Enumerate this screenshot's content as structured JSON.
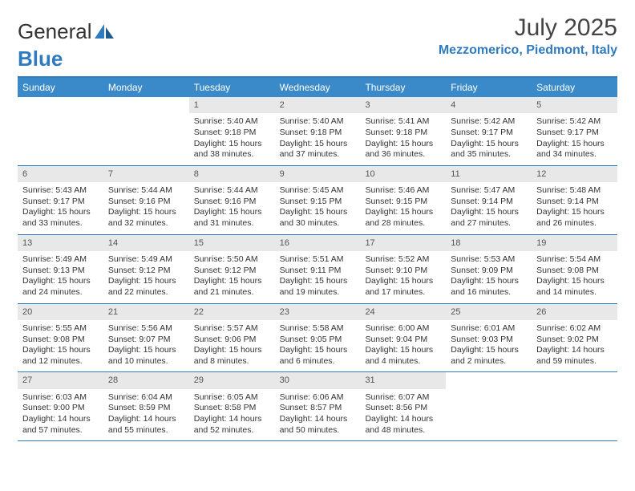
{
  "brand": {
    "part1": "General",
    "part2": "Blue"
  },
  "title": "July 2025",
  "location": "Mezzomerico, Piedmont, Italy",
  "colors": {
    "header_bg": "#3a8ac9",
    "accent": "#2f7bbf",
    "daynum_bg": "#e8e8e8",
    "text": "#333333"
  },
  "day_names": [
    "Sunday",
    "Monday",
    "Tuesday",
    "Wednesday",
    "Thursday",
    "Friday",
    "Saturday"
  ],
  "weeks": [
    [
      null,
      null,
      {
        "n": "1",
        "sr": "5:40 AM",
        "ss": "9:18 PM",
        "dl": "15 hours and 38 minutes."
      },
      {
        "n": "2",
        "sr": "5:40 AM",
        "ss": "9:18 PM",
        "dl": "15 hours and 37 minutes."
      },
      {
        "n": "3",
        "sr": "5:41 AM",
        "ss": "9:18 PM",
        "dl": "15 hours and 36 minutes."
      },
      {
        "n": "4",
        "sr": "5:42 AM",
        "ss": "9:17 PM",
        "dl": "15 hours and 35 minutes."
      },
      {
        "n": "5",
        "sr": "5:42 AM",
        "ss": "9:17 PM",
        "dl": "15 hours and 34 minutes."
      }
    ],
    [
      {
        "n": "6",
        "sr": "5:43 AM",
        "ss": "9:17 PM",
        "dl": "15 hours and 33 minutes."
      },
      {
        "n": "7",
        "sr": "5:44 AM",
        "ss": "9:16 PM",
        "dl": "15 hours and 32 minutes."
      },
      {
        "n": "8",
        "sr": "5:44 AM",
        "ss": "9:16 PM",
        "dl": "15 hours and 31 minutes."
      },
      {
        "n": "9",
        "sr": "5:45 AM",
        "ss": "9:15 PM",
        "dl": "15 hours and 30 minutes."
      },
      {
        "n": "10",
        "sr": "5:46 AM",
        "ss": "9:15 PM",
        "dl": "15 hours and 28 minutes."
      },
      {
        "n": "11",
        "sr": "5:47 AM",
        "ss": "9:14 PM",
        "dl": "15 hours and 27 minutes."
      },
      {
        "n": "12",
        "sr": "5:48 AM",
        "ss": "9:14 PM",
        "dl": "15 hours and 26 minutes."
      }
    ],
    [
      {
        "n": "13",
        "sr": "5:49 AM",
        "ss": "9:13 PM",
        "dl": "15 hours and 24 minutes."
      },
      {
        "n": "14",
        "sr": "5:49 AM",
        "ss": "9:12 PM",
        "dl": "15 hours and 22 minutes."
      },
      {
        "n": "15",
        "sr": "5:50 AM",
        "ss": "9:12 PM",
        "dl": "15 hours and 21 minutes."
      },
      {
        "n": "16",
        "sr": "5:51 AM",
        "ss": "9:11 PM",
        "dl": "15 hours and 19 minutes."
      },
      {
        "n": "17",
        "sr": "5:52 AM",
        "ss": "9:10 PM",
        "dl": "15 hours and 17 minutes."
      },
      {
        "n": "18",
        "sr": "5:53 AM",
        "ss": "9:09 PM",
        "dl": "15 hours and 16 minutes."
      },
      {
        "n": "19",
        "sr": "5:54 AM",
        "ss": "9:08 PM",
        "dl": "15 hours and 14 minutes."
      }
    ],
    [
      {
        "n": "20",
        "sr": "5:55 AM",
        "ss": "9:08 PM",
        "dl": "15 hours and 12 minutes."
      },
      {
        "n": "21",
        "sr": "5:56 AM",
        "ss": "9:07 PM",
        "dl": "15 hours and 10 minutes."
      },
      {
        "n": "22",
        "sr": "5:57 AM",
        "ss": "9:06 PM",
        "dl": "15 hours and 8 minutes."
      },
      {
        "n": "23",
        "sr": "5:58 AM",
        "ss": "9:05 PM",
        "dl": "15 hours and 6 minutes."
      },
      {
        "n": "24",
        "sr": "6:00 AM",
        "ss": "9:04 PM",
        "dl": "15 hours and 4 minutes."
      },
      {
        "n": "25",
        "sr": "6:01 AM",
        "ss": "9:03 PM",
        "dl": "15 hours and 2 minutes."
      },
      {
        "n": "26",
        "sr": "6:02 AM",
        "ss": "9:02 PM",
        "dl": "14 hours and 59 minutes."
      }
    ],
    [
      {
        "n": "27",
        "sr": "6:03 AM",
        "ss": "9:00 PM",
        "dl": "14 hours and 57 minutes."
      },
      {
        "n": "28",
        "sr": "6:04 AM",
        "ss": "8:59 PM",
        "dl": "14 hours and 55 minutes."
      },
      {
        "n": "29",
        "sr": "6:05 AM",
        "ss": "8:58 PM",
        "dl": "14 hours and 52 minutes."
      },
      {
        "n": "30",
        "sr": "6:06 AM",
        "ss": "8:57 PM",
        "dl": "14 hours and 50 minutes."
      },
      {
        "n": "31",
        "sr": "6:07 AM",
        "ss": "8:56 PM",
        "dl": "14 hours and 48 minutes."
      },
      null,
      null
    ]
  ],
  "labels": {
    "sunrise": "Sunrise:",
    "sunset": "Sunset:",
    "daylight": "Daylight:"
  }
}
